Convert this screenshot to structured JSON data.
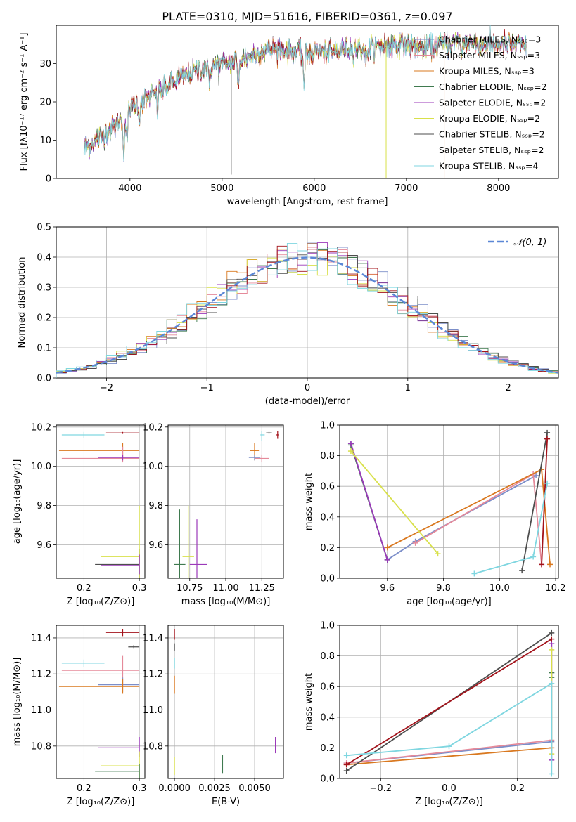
{
  "figure_title": "PLATE=0310, MJD=51616, FIBERID=0361, z=0.097",
  "colors": [
    "#7c8ec9",
    "#e58a9a",
    "#d9781f",
    "#3f7a4f",
    "#9b39b9",
    "#d8e04a",
    "#4d4d4d",
    "#a3131b",
    "#7fd6e0"
  ],
  "chart_data": [
    {
      "id": "spectrum",
      "type": "line",
      "title": "PLATE=0310, MJD=51616, FIBERID=0361, z=0.097",
      "xlabel": "wavelength [Angstrom, rest frame]",
      "ylabel": "Flux [fλ10⁻¹⁷ erg cm⁻² s⁻¹ A⁻¹]",
      "xlim": [
        3200,
        8650
      ],
      "ylim": [
        0,
        40
      ],
      "xticks": [
        4000,
        5000,
        6000,
        7000,
        8000
      ],
      "yticks": [
        0,
        10,
        20,
        30
      ],
      "grid": false,
      "legend_position": "upper-right",
      "continuum": [
        [
          3500,
          8
        ],
        [
          3700,
          11
        ],
        [
          3850,
          14
        ],
        [
          4000,
          19
        ],
        [
          4200,
          21
        ],
        [
          4400,
          24
        ],
        [
          4600,
          27
        ],
        [
          4800,
          29
        ],
        [
          5000,
          30
        ],
        [
          5200,
          31
        ],
        [
          5400,
          33
        ],
        [
          5600,
          34
        ],
        [
          5800,
          33
        ],
        [
          6000,
          33
        ],
        [
          6200,
          33
        ],
        [
          6400,
          34
        ],
        [
          6600,
          34
        ],
        [
          6800,
          35
        ],
        [
          7000,
          35
        ],
        [
          7200,
          34
        ],
        [
          7400,
          35
        ],
        [
          7600,
          36
        ],
        [
          7800,
          35
        ],
        [
          8000,
          35
        ],
        [
          8200,
          35
        ],
        [
          8300,
          34
        ]
      ],
      "series": [
        {
          "name": "Chabrier MILES, Nₛₛₚ=3"
        },
        {
          "name": "Salpeter MILES, Nₛₛₚ=3"
        },
        {
          "name": "Kroupa MILES, Nₛₛₚ=3"
        },
        {
          "name": "Chabrier ELODIE, Nₛₛₚ=2"
        },
        {
          "name": "Salpeter ELODIE, Nₛₛₚ=2"
        },
        {
          "name": "Kroupa ELODIE, Nₛₛₚ=2"
        },
        {
          "name": "Chabrier STELIB, Nₛₛₚ=2"
        },
        {
          "name": "Salpeter STELIB, Nₛₛₚ=2"
        },
        {
          "name": "Kroupa STELIB, Nₛₛₚ=4"
        }
      ]
    },
    {
      "id": "residuals",
      "type": "histogram",
      "xlabel": "(data-model)/error",
      "ylabel": "Normed distribution",
      "xlim": [
        -2.5,
        2.5
      ],
      "ylim": [
        0,
        0.5
      ],
      "xticks": [
        -2,
        -1,
        0,
        1,
        2
      ],
      "yticks": [
        0.0,
        0.1,
        0.2,
        0.3,
        0.4,
        0.5
      ],
      "grid": true,
      "legend": "𝒩(0, 1)",
      "legend_position": "upper-right",
      "bin_width": 0.1
    },
    {
      "id": "age_vs_Z",
      "type": "scatter",
      "xlabel": "Z [log₁₀(Z/Z⊙)]",
      "ylabel": "age  [log₁₀(age/yr)]",
      "xlim": [
        0.15,
        0.31
      ],
      "ylim": [
        9.43,
        10.21
      ],
      "xticks": [
        0.2,
        0.3
      ],
      "yticks": [
        9.6,
        9.8,
        10.0,
        10.2
      ],
      "grid": true,
      "points": [
        {
          "c": 8,
          "x": 0.2,
          "y": 10.16,
          "xlo": 0.16,
          "xhi": 0.237,
          "ylo": 10.145,
          "yhi": 10.175
        },
        {
          "c": 7,
          "x": 0.27,
          "y": 10.17,
          "xlo": 0.24,
          "xhi": 0.3,
          "ylo": 10.165,
          "yhi": 10.175
        },
        {
          "c": 2,
          "x": 0.27,
          "y": 10.08,
          "xlo": 0.155,
          "xhi": 0.3,
          "ylo": 10.04,
          "yhi": 10.12
        },
        {
          "c": 1,
          "x": 0.27,
          "y": 10.04,
          "xlo": 0.16,
          "xhi": 0.3,
          "ylo": 10.02,
          "yhi": 10.1
        },
        {
          "c": 4,
          "x": 0.27,
          "y": 10.045,
          "xlo": 0.225,
          "xhi": 0.3,
          "ylo": 10.03,
          "yhi": 10.06
        },
        {
          "c": 6,
          "x": 0.3,
          "y": 9.5,
          "xlo": 0.22,
          "xhi": 0.3,
          "ylo": 9.43,
          "yhi": 9.58
        },
        {
          "c": 5,
          "x": 0.3,
          "y": 9.54,
          "xlo": 0.23,
          "xhi": 0.3,
          "ylo": 9.43,
          "yhi": 9.8
        },
        {
          "c": 4,
          "x": 0.3,
          "y": 9.495,
          "xlo": 0.23,
          "xhi": 0.3,
          "ylo": 9.45,
          "yhi": 9.55
        }
      ]
    },
    {
      "id": "age_vs_mass",
      "type": "scatter",
      "xlabel": "mass [log₁₀(M/M⊙)]",
      "ylabel": "",
      "xlim": [
        10.6,
        11.4
      ],
      "ylim": [
        9.43,
        10.21
      ],
      "xticks": [
        10.75,
        11.0,
        11.25
      ],
      "yticks": [
        9.6,
        9.8,
        10.0,
        10.2
      ],
      "xtick_labels": [
        "10.75",
        "11.00",
        "11.25"
      ],
      "grid": true,
      "points": [
        {
          "c": 6,
          "x": 11.3,
          "y": 10.17,
          "xlo": 11.28,
          "xhi": 11.32,
          "ylo": 10.165,
          "yhi": 10.175
        },
        {
          "c": 7,
          "x": 11.36,
          "y": 10.16,
          "xlo": 11.35,
          "xhi": 11.37,
          "ylo": 10.14,
          "yhi": 10.18
        },
        {
          "c": 8,
          "x": 11.25,
          "y": 10.16,
          "xlo": 11.24,
          "xhi": 11.27,
          "ylo": 10.13,
          "yhi": 10.18
        },
        {
          "c": 2,
          "x": 11.2,
          "y": 10.08,
          "xlo": 11.17,
          "xhi": 11.23,
          "ylo": 10.03,
          "yhi": 10.12
        },
        {
          "c": 1,
          "x": 11.25,
          "y": 10.04,
          "xlo": 11.2,
          "xhi": 11.3,
          "ylo": 10.02,
          "yhi": 10.06
        },
        {
          "c": 0,
          "x": 11.2,
          "y": 10.045,
          "xlo": 11.16,
          "xhi": 11.24,
          "ylo": 10.03,
          "yhi": 10.06
        },
        {
          "c": 4,
          "x": 10.8,
          "y": 9.5,
          "xlo": 10.75,
          "xhi": 10.87,
          "ylo": 9.43,
          "yhi": 9.73
        },
        {
          "c": 5,
          "x": 10.74,
          "y": 9.54,
          "xlo": 10.7,
          "xhi": 10.78,
          "ylo": 9.43,
          "yhi": 9.8
        },
        {
          "c": 3,
          "x": 10.68,
          "y": 9.5,
          "xlo": 10.64,
          "xhi": 10.72,
          "ylo": 9.43,
          "yhi": 9.78
        }
      ]
    },
    {
      "id": "massweight_vs_age",
      "type": "line",
      "xlabel": "age  [log₁₀(age/yr)]",
      "ylabel": "mass weight",
      "xlim": [
        9.43,
        10.21
      ],
      "ylim": [
        0,
        1
      ],
      "xticks": [
        9.6,
        9.8,
        10.0,
        10.2
      ],
      "yticks": [
        0.0,
        0.2,
        0.4,
        0.6,
        0.8,
        1.0
      ],
      "grid": true,
      "series": [
        {
          "c": 0,
          "points": [
            [
              9.47,
              0.88
            ],
            [
              9.6,
              0.12
            ],
            [
              9.7,
              0.24
            ],
            [
              10.13,
              0.67
            ]
          ]
        },
        {
          "c": 1,
          "points": [
            [
              9.7,
              0.23
            ],
            [
              10.12,
              0.68
            ],
            [
              10.15,
              0.09
            ]
          ]
        },
        {
          "c": 2,
          "points": [
            [
              9.6,
              0.2
            ],
            [
              10.15,
              0.71
            ],
            [
              10.18,
              0.09
            ]
          ]
        },
        {
          "c": 3,
          "points": [
            [
              9.47,
              0.87
            ],
            [
              9.6,
              0.12
            ]
          ]
        },
        {
          "c": 4,
          "points": [
            [
              9.47,
              0.88
            ],
            [
              9.6,
              0.12
            ]
          ]
        },
        {
          "c": 5,
          "points": [
            [
              9.47,
              0.83
            ],
            [
              9.78,
              0.16
            ]
          ]
        },
        {
          "c": 6,
          "points": [
            [
              10.08,
              0.05
            ],
            [
              10.17,
              0.95
            ]
          ]
        },
        {
          "c": 7,
          "points": [
            [
              10.15,
              0.09
            ],
            [
              10.17,
              0.91
            ]
          ]
        },
        {
          "c": 8,
          "points": [
            [
              9.91,
              0.03
            ],
            [
              10.12,
              0.14
            ],
            [
              10.17,
              0.62
            ]
          ]
        }
      ]
    },
    {
      "id": "mass_vs_Z",
      "type": "scatter",
      "xlabel": "Z [log₁₀(Z/Z⊙)]",
      "ylabel": "mass [log₁₀(M/M⊙)]",
      "xlim": [
        0.15,
        0.31
      ],
      "ylim": [
        10.62,
        11.47
      ],
      "xticks": [
        0.2,
        0.3
      ],
      "yticks": [
        10.8,
        11.0,
        11.2,
        11.4
      ],
      "grid": true,
      "points": [
        {
          "c": 7,
          "x": 0.27,
          "y": 11.43,
          "xlo": 0.24,
          "xhi": 0.3,
          "ylo": 11.41,
          "yhi": 11.45
        },
        {
          "c": 6,
          "x": 0.29,
          "y": 11.35,
          "xlo": 0.28,
          "xhi": 0.3,
          "ylo": 11.34,
          "yhi": 11.36
        },
        {
          "c": 8,
          "x": 0.2,
          "y": 11.26,
          "xlo": 0.16,
          "xhi": 0.237,
          "ylo": 11.24,
          "yhi": 11.28
        },
        {
          "c": 1,
          "x": 0.27,
          "y": 11.22,
          "xlo": 0.16,
          "xhi": 0.3,
          "ylo": 11.14,
          "yhi": 11.3
        },
        {
          "c": 0,
          "x": 0.27,
          "y": 11.14,
          "xlo": 0.225,
          "xhi": 0.3,
          "ylo": 11.1,
          "yhi": 11.18
        },
        {
          "c": 2,
          "x": 0.27,
          "y": 11.13,
          "xlo": 0.155,
          "xhi": 0.3,
          "ylo": 11.09,
          "yhi": 11.17
        },
        {
          "c": 4,
          "x": 0.3,
          "y": 10.79,
          "xlo": 0.225,
          "xhi": 0.3,
          "ylo": 10.74,
          "yhi": 10.85
        },
        {
          "c": 5,
          "x": 0.3,
          "y": 10.69,
          "xlo": 0.23,
          "xhi": 0.3,
          "ylo": 10.62,
          "yhi": 10.77
        },
        {
          "c": 3,
          "x": 0.3,
          "y": 10.66,
          "xlo": 0.22,
          "xhi": 0.3,
          "ylo": 10.62,
          "yhi": 10.7
        }
      ]
    },
    {
      "id": "mass_vs_EBV",
      "type": "scatter",
      "xlabel": "E(B-V)",
      "ylabel": "",
      "xlim": [
        -0.0004,
        0.0068
      ],
      "ylim": [
        10.62,
        11.47
      ],
      "xticks": [
        0.0,
        0.0025,
        0.005
      ],
      "xtick_labels": [
        "0.0000",
        "0.0025",
        "0.0050"
      ],
      "yticks": [
        10.8,
        11.0,
        11.2,
        11.4
      ],
      "grid": true,
      "points": [
        {
          "c": 7,
          "x": 0.0,
          "y": 11.42,
          "xlo": 0.0,
          "xhi": 0.0,
          "ylo": 11.39,
          "yhi": 11.45
        },
        {
          "c": 6,
          "x": 0.0,
          "y": 11.35,
          "xlo": 0.0,
          "xhi": 0.0,
          "ylo": 11.33,
          "yhi": 11.37
        },
        {
          "c": 8,
          "x": 0.0,
          "y": 11.26,
          "xlo": 0.0,
          "xhi": 0.0,
          "ylo": 11.23,
          "yhi": 11.29
        },
        {
          "c": 2,
          "x": 0.0,
          "y": 11.14,
          "xlo": 0.0,
          "xhi": 0.0,
          "ylo": 11.09,
          "yhi": 11.19
        },
        {
          "c": 5,
          "x": 0.0,
          "y": 10.69,
          "xlo": 0.0,
          "xhi": 0.0,
          "ylo": 10.64,
          "yhi": 10.74
        },
        {
          "c": 3,
          "x": 0.003,
          "y": 10.7,
          "xlo": 0.003,
          "xhi": 0.003,
          "ylo": 10.65,
          "yhi": 10.75
        },
        {
          "c": 4,
          "x": 0.0063,
          "y": 10.8,
          "xlo": 0.0063,
          "xhi": 0.0063,
          "ylo": 10.76,
          "yhi": 10.85
        }
      ]
    },
    {
      "id": "massweight_vs_Z",
      "type": "line",
      "xlabel": "Z [log₁₀(Z/Z⊙)]",
      "ylabel": "mass weight",
      "xlim": [
        -0.32,
        0.32
      ],
      "ylim": [
        0,
        1
      ],
      "xticks": [
        -0.2,
        0.0,
        0.2
      ],
      "yticks": [
        0.0,
        0.2,
        0.4,
        0.6,
        0.8,
        1.0
      ],
      "grid": true,
      "series": [
        {
          "c": 0,
          "points": [
            [
              -0.3,
              0.1
            ],
            [
              0.3,
              0.24
            ]
          ]
        },
        {
          "c": 1,
          "points": [
            [
              -0.3,
              0.1
            ],
            [
              0.3,
              0.25
            ]
          ]
        },
        {
          "c": 2,
          "points": [
            [
              -0.3,
              0.09
            ],
            [
              0.3,
              0.2
            ]
          ]
        },
        {
          "c": 3,
          "points": [
            [
              0.3,
              0.69
            ],
            [
              0.3,
              0.66
            ]
          ]
        },
        {
          "c": 4,
          "points": [
            [
              0.3,
              0.12
            ],
            [
              0.3,
              0.88
            ]
          ]
        },
        {
          "c": 5,
          "points": [
            [
              0.3,
              0.16
            ],
            [
              0.3,
              0.84
            ]
          ]
        },
        {
          "c": 6,
          "points": [
            [
              -0.3,
              0.05
            ],
            [
              0.3,
              0.95
            ]
          ]
        },
        {
          "c": 7,
          "points": [
            [
              -0.3,
              0.09
            ],
            [
              0.3,
              0.91
            ]
          ]
        },
        {
          "c": 8,
          "points": [
            [
              -0.3,
              0.15
            ],
            [
              0.0,
              0.21
            ],
            [
              0.3,
              0.62
            ],
            [
              0.3,
              0.03
            ]
          ]
        }
      ]
    }
  ]
}
